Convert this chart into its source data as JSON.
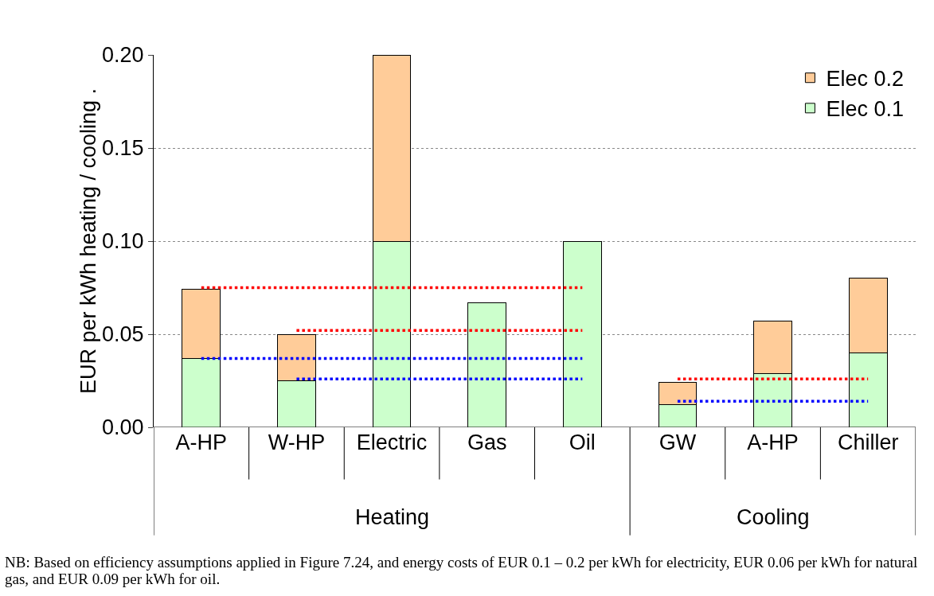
{
  "chart_data": {
    "type": "bar",
    "stacked": true,
    "ylabel": "EUR per kWh heating / cooling .",
    "categories": [
      "A-HP",
      "W-HP",
      "Electric",
      "Gas",
      "Oil",
      "GW",
      "A-HP",
      "Chiller"
    ],
    "series": [
      {
        "name": "Elec 0.1",
        "color": "#ccffcc",
        "values": [
          0.037,
          0.025,
          0.1,
          0.067,
          0.1,
          0.012,
          0.029,
          0.04
        ]
      },
      {
        "name": "Elec 0.2",
        "color": "#ffcc99",
        "values": [
          0.037,
          0.025,
          0.1,
          null,
          null,
          0.012,
          0.028,
          0.04
        ]
      },
      {
        "type": "line",
        "color": "#ff0000",
        "line_style": "dotted",
        "values": [
          0.075,
          0.075,
          0.075,
          0.075,
          0.075,
          null,
          null,
          null
        ]
      },
      {
        "type": "line",
        "color": "#ff0000",
        "line_style": "dotted",
        "values": [
          null,
          0.052,
          0.052,
          0.052,
          0.052,
          null,
          null,
          null
        ]
      },
      {
        "type": "line",
        "color": "#0000ff",
        "line_style": "dotted",
        "values": [
          0.037,
          0.037,
          0.037,
          0.037,
          0.037,
          null,
          null,
          null
        ]
      },
      {
        "type": "line",
        "color": "#0000ff",
        "line_style": "dotted",
        "values": [
          null,
          0.026,
          0.026,
          0.026,
          0.026,
          null,
          null,
          null
        ]
      },
      {
        "type": "line",
        "color": "#ff0000",
        "line_style": "dotted",
        "values": [
          null,
          null,
          null,
          null,
          null,
          0.026,
          0.026,
          0.026
        ]
      },
      {
        "type": "line",
        "color": "#0000ff",
        "line_style": "dotted",
        "values": [
          null,
          null,
          null,
          null,
          null,
          0.014,
          0.014,
          0.014
        ]
      }
    ],
    "ylim": [
      0,
      0.2
    ],
    "yticks": [
      {
        "value": 0,
        "label": "0.00"
      },
      {
        "value": 0.05,
        "label": "0.05"
      },
      {
        "value": 0.1,
        "label": "0.10"
      },
      {
        "value": 0.15,
        "label": "0.15"
      },
      {
        "value": 0.2,
        "label": "0.20"
      }
    ],
    "grid": "y",
    "legend": "top right",
    "marker": "none",
    "annotations": [
      "Heating",
      "Cooling",
      "NB: Based on efficiency assumptions applied in Figure 7.24, and energy costs of EUR 0.1 – 0.2 per kWh for electricity, EUR 0.06 per kWh for natural gas, and EUR 0.09 per kWh for oil."
    ]
  }
}
